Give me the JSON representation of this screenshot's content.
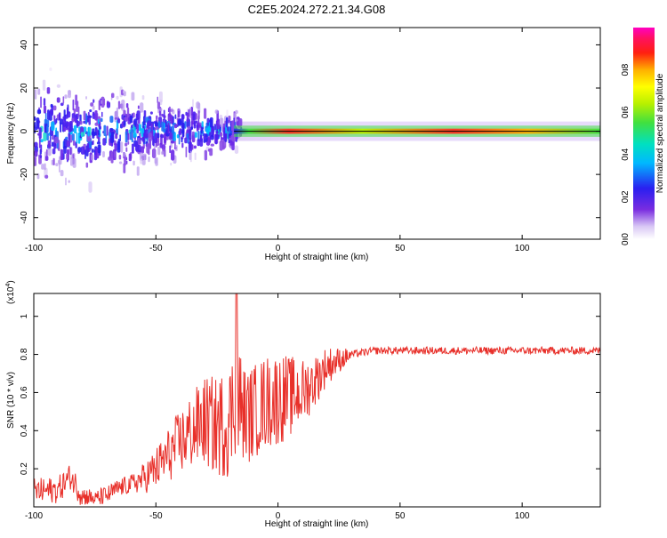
{
  "title": "C2E5.2024.272.21.34.G08",
  "chart_data": [
    {
      "type": "heatmap",
      "xlabel": "Height of straight line (km)",
      "ylabel": "Frequency (Hz)",
      "xlim": [
        -100,
        132
      ],
      "ylim": [
        -50,
        48
      ],
      "xticks": [
        -100,
        -50,
        0,
        50,
        100
      ],
      "yticks": [
        -40,
        -20,
        0,
        20,
        40
      ],
      "description_series": [
        {
          "x_range": [
            -100,
            -15
          ],
          "freq_spread_hz": [
            -25,
            30
          ],
          "amplitude": [
            0.05,
            0.35
          ]
        },
        {
          "x_range": [
            -15,
            132
          ],
          "freq_center_hz": 0,
          "freq_spread_hz": [
            -3,
            3
          ],
          "amplitude": [
            0.5,
            0.95
          ]
        }
      ],
      "colorbar": {
        "label": "Normalized spectral amplitude",
        "ticks": [
          "0.0",
          "0.2",
          "0.4",
          "0.6",
          "0.8"
        ],
        "range": [
          0,
          1
        ]
      }
    },
    {
      "type": "line",
      "xlabel": "Height of straight line (km)",
      "ylabel": "SNR (10 * v/v)",
      "yscale_label": "(x10",
      "yscale_exp": "4",
      "xlim": [
        -100,
        132
      ],
      "ylim": [
        0,
        1.12
      ],
      "xticks": [
        -100,
        -50,
        0,
        50,
        100
      ],
      "yticks": [
        "0.2",
        "0.4",
        "0.6",
        "0.8",
        "1"
      ],
      "color": "#e8302a",
      "series": [
        {
          "x": [
            -100,
            -90,
            -85,
            -80,
            -75,
            -70,
            -65,
            -60,
            -55,
            -50,
            -45,
            -40,
            -35,
            -30,
            -25,
            -20,
            -17,
            -15,
            -12,
            -10,
            -5,
            0,
            5,
            10,
            15,
            20,
            25,
            30,
            35,
            40,
            50,
            60,
            70,
            80,
            90,
            100,
            110,
            120,
            132
          ],
          "y": [
            0.08,
            0.09,
            0.16,
            0.06,
            0.04,
            0.06,
            0.1,
            0.12,
            0.15,
            0.2,
            0.27,
            0.34,
            0.4,
            0.45,
            0.42,
            0.45,
            0.6,
            0.5,
            0.48,
            0.5,
            0.55,
            0.57,
            0.58,
            0.6,
            0.66,
            0.74,
            0.77,
            0.8,
            0.81,
            0.82,
            0.82,
            0.82,
            0.82,
            0.82,
            0.82,
            0.82,
            0.82,
            0.82,
            0.82
          ]
        }
      ]
    }
  ]
}
